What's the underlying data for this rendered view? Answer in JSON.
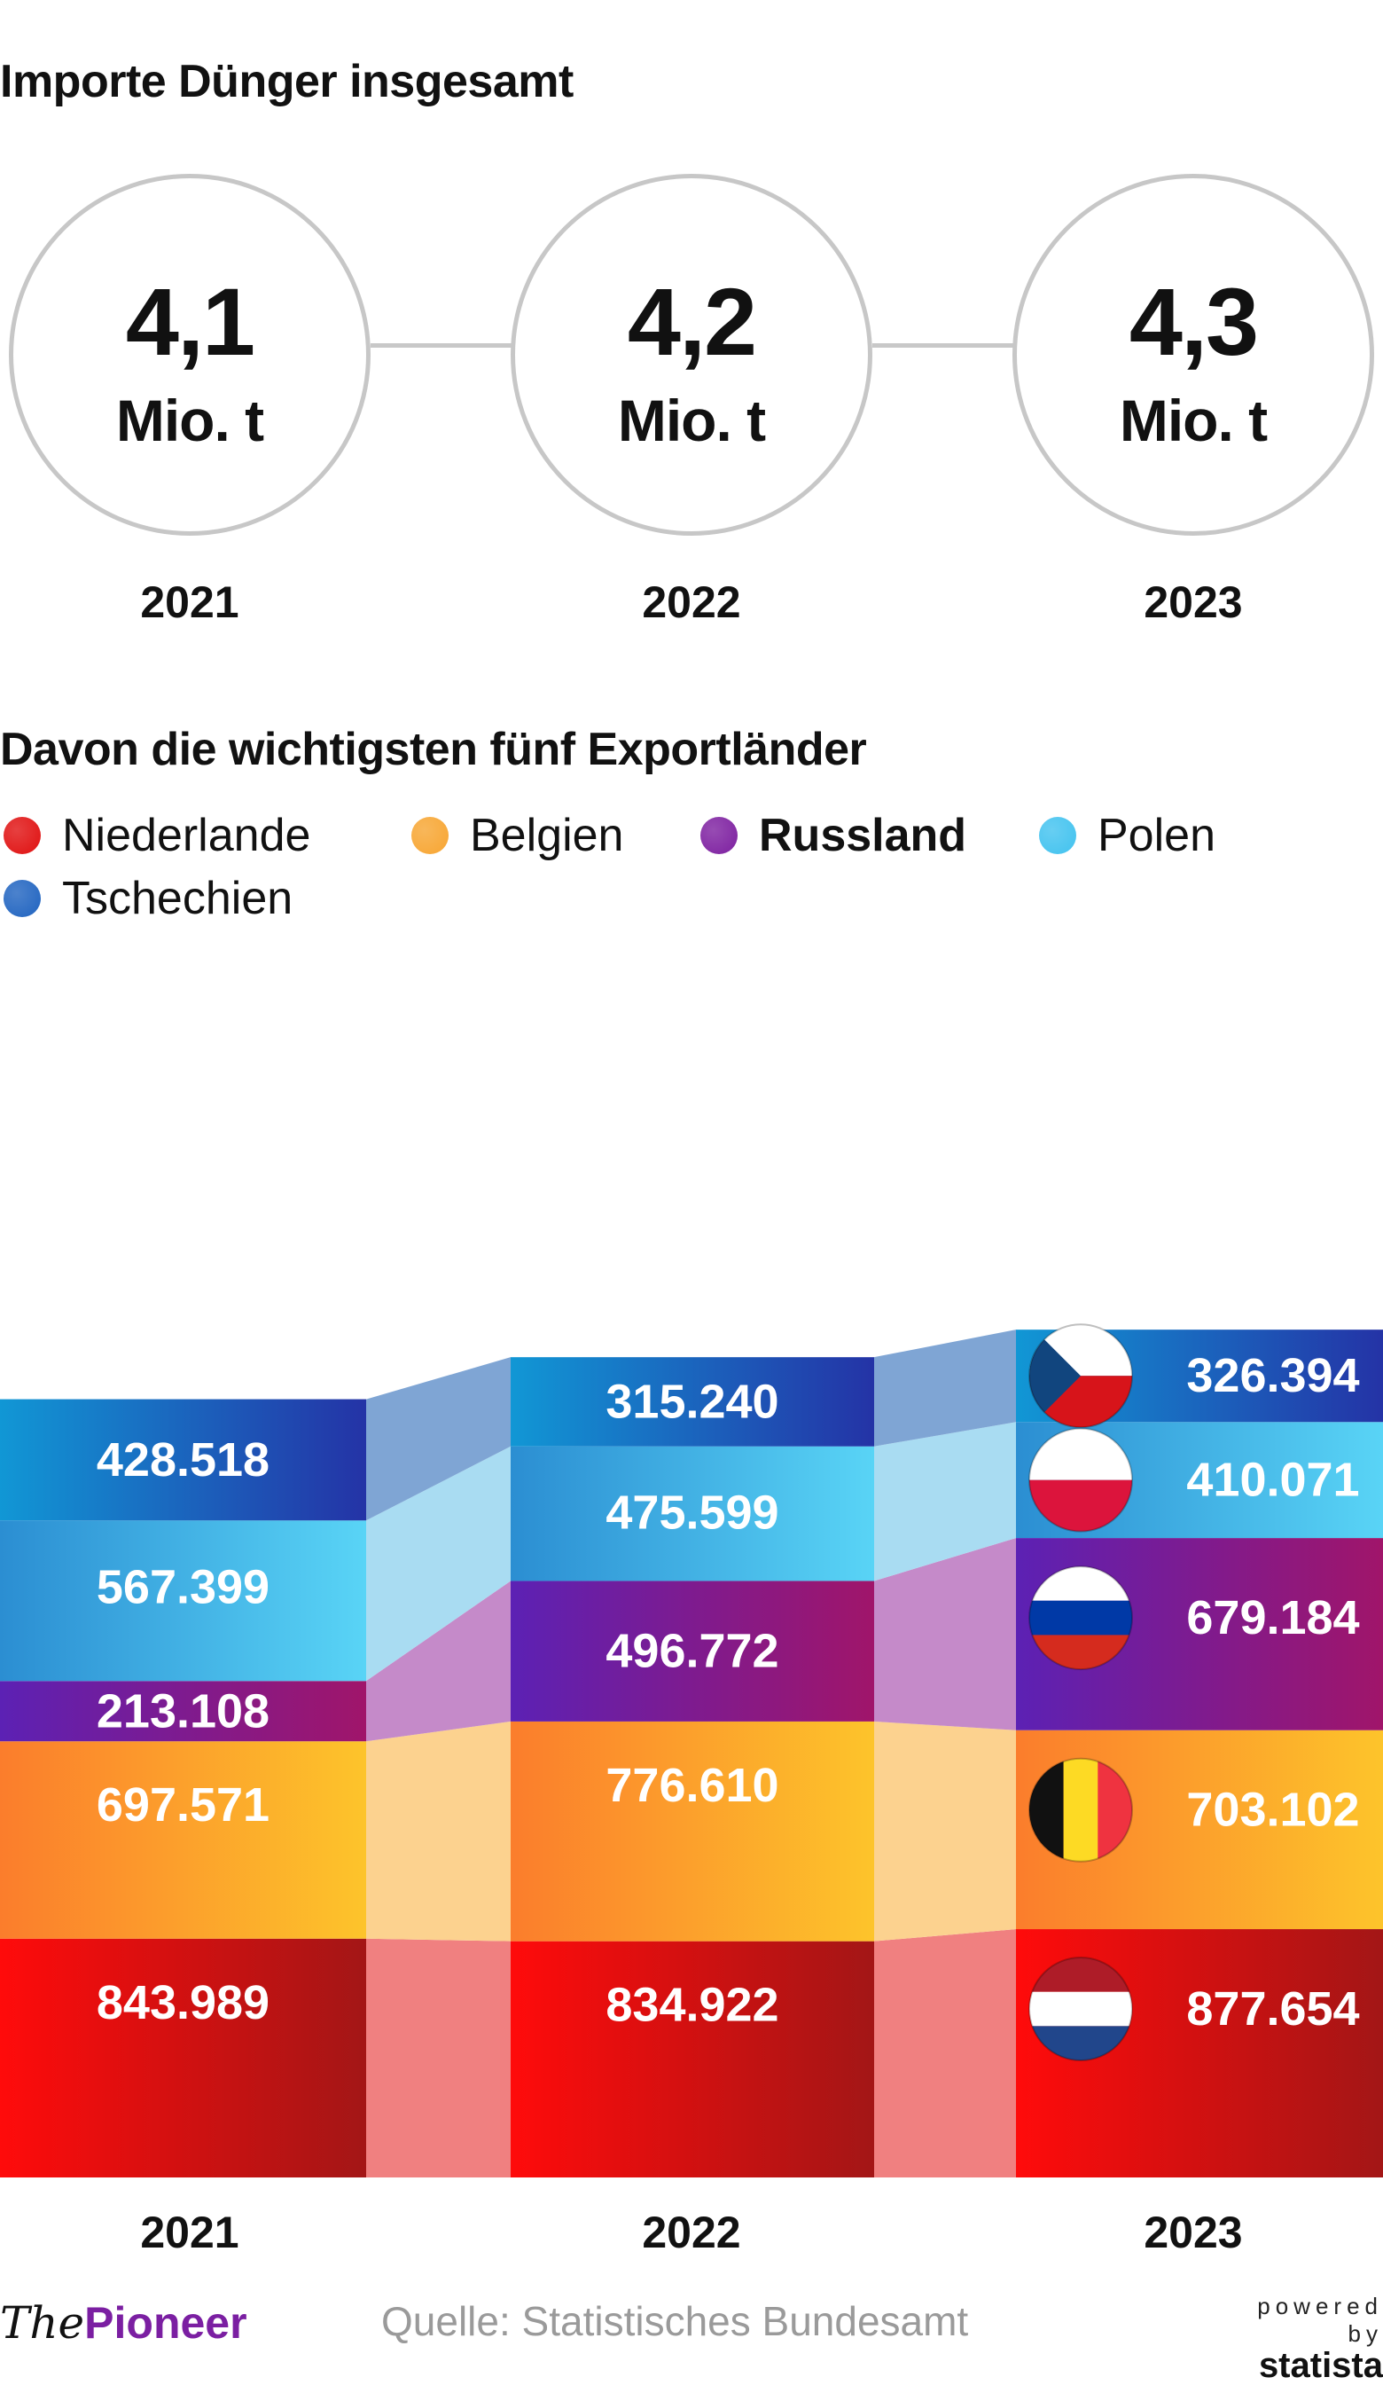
{
  "totals": {
    "title": "Importe Dünger insgesamt",
    "items": [
      {
        "value": "4,1",
        "unit": "Mio. t",
        "year": "2021"
      },
      {
        "value": "4,2",
        "unit": "Mio. t",
        "year": "2022"
      },
      {
        "value": "4,3",
        "unit": "Mio. t",
        "year": "2023"
      }
    ]
  },
  "legend": [
    {
      "label": "Niederlande",
      "color": "#e01010"
    },
    {
      "label": "Belgien",
      "color": "#f7a531"
    },
    {
      "label": "Russland",
      "color": "#7d1fa0"
    },
    {
      "label": "Polen",
      "color": "#41c2ef"
    },
    {
      "label": "Tschechien",
      "color": "#1f63c0"
    }
  ],
  "chart_data": {
    "type": "bar",
    "stacked": true,
    "title": "Davon die wichtigsten fünf Exportländer",
    "categories": [
      "2021",
      "2022",
      "2023"
    ],
    "series": [
      {
        "name": "Niederlande",
        "values": [
          843989,
          834922,
          877654
        ],
        "labels": [
          "843.989",
          "834.922",
          "877.654"
        ],
        "colors": [
          "#ff0b0b",
          "#a31616"
        ],
        "ribbon": "#f08080",
        "flag": "nl-flag-icon"
      },
      {
        "name": "Belgien",
        "values": [
          697571,
          776610,
          703102
        ],
        "labels": [
          "697.571",
          "776.610",
          "703.102"
        ],
        "colors": [
          "#fb7d2c",
          "#fdc42b"
        ],
        "ribbon": "#fcd28f",
        "flag": "be-flag-icon"
      },
      {
        "name": "Russland",
        "values": [
          213108,
          496772,
          679184
        ],
        "labels": [
          "213.108",
          "496.772",
          "679.184"
        ],
        "colors": [
          "#5c21b4",
          "#a0156a"
        ],
        "ribbon": "#c58ac9",
        "flag": "ru-flag-icon"
      },
      {
        "name": "Polen",
        "values": [
          567399,
          475599,
          410071
        ],
        "labels": [
          "567.399",
          "475.599",
          "410.071"
        ],
        "colors": [
          "#2b8ed2",
          "#59d4f6"
        ],
        "ribbon": "#a9dcf2",
        "flag": "pl-flag-icon"
      },
      {
        "name": "Tschechien",
        "values": [
          428518,
          315240,
          326394
        ],
        "labels": [
          "428.518",
          "315.240",
          "326.394"
        ],
        "colors": [
          "#1197d5",
          "#2433a6"
        ],
        "ribbon": "#7fa5d4",
        "flag": "cz-flag-icon"
      }
    ],
    "legend_position": "top-left",
    "grid": false
  },
  "footer": {
    "brand_a": "The",
    "brand_b": "Pioneer",
    "source": "Quelle: Statistisches Bundesamt",
    "powered": "powered by",
    "statista": "statista"
  }
}
